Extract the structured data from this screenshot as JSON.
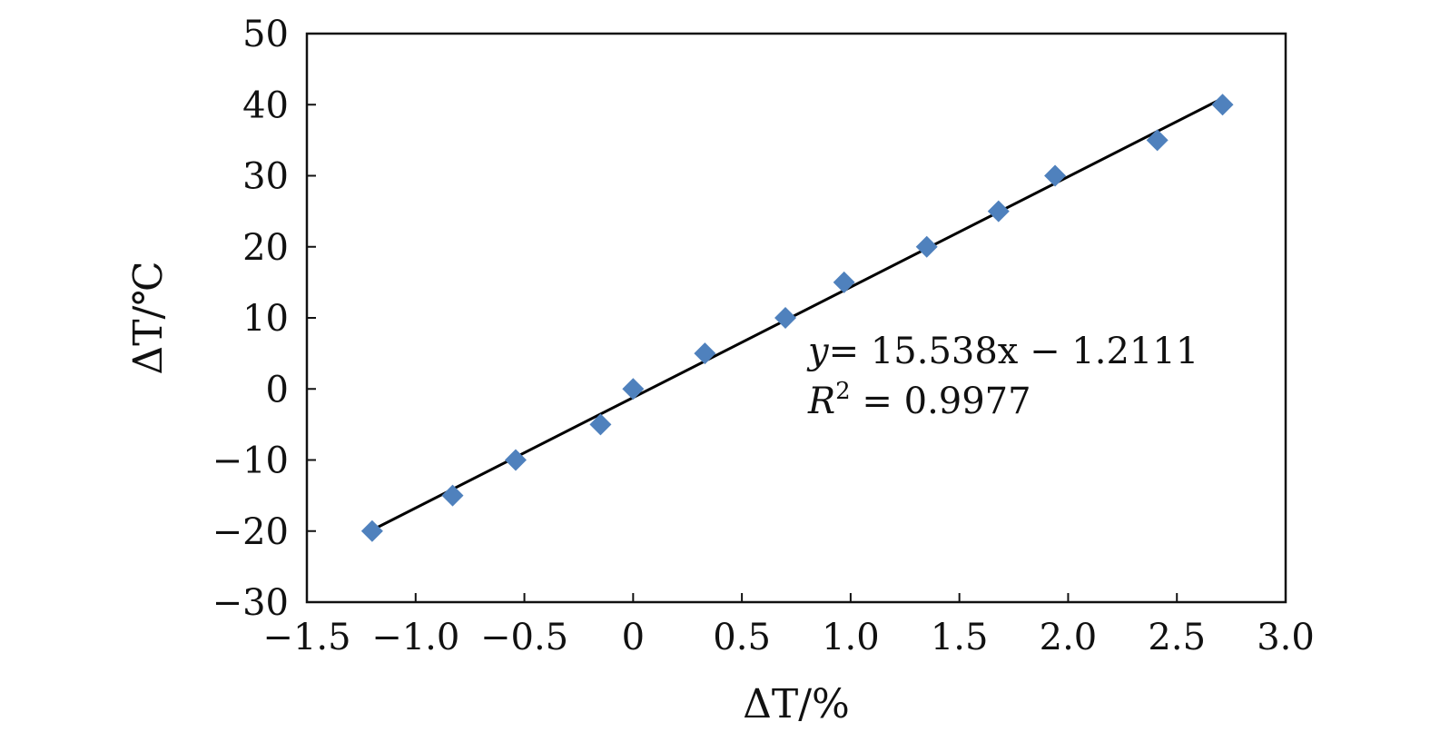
{
  "chart_data": {
    "type": "scatter",
    "xlabel": "ΔT/%",
    "ylabel": "ΔT/℃",
    "xlim": [
      -1.5,
      3.0
    ],
    "ylim": [
      -30,
      50
    ],
    "x_ticks": [
      -1.5,
      -1.0,
      -0.5,
      0,
      0.5,
      1.0,
      1.5,
      2.0,
      2.5,
      3.0
    ],
    "x_tick_labels": [
      "−1.5",
      "−1.0",
      "−0.5",
      "0",
      "0.5",
      "1.0",
      "1.5",
      "2.0",
      "2.5",
      "3.0"
    ],
    "y_ticks": [
      -30,
      -20,
      -10,
      0,
      10,
      20,
      30,
      40,
      50
    ],
    "y_tick_labels": [
      "−30",
      "−20",
      "−10",
      "0",
      "10",
      "20",
      "30",
      "40",
      "50"
    ],
    "grid": false,
    "marker_color": "#4f81bd",
    "line_color": "#000000",
    "series": [
      {
        "x": [
          -1.2,
          -0.83,
          -0.54,
          -0.15,
          0.0,
          0.33,
          0.7,
          0.97,
          1.35,
          1.68,
          1.94,
          2.41,
          2.71
        ],
        "y": [
          -20,
          -15,
          -10,
          -5,
          0,
          5,
          10,
          15,
          20,
          25,
          30,
          35,
          40
        ]
      }
    ],
    "trendline": {
      "slope": 15.538,
      "intercept": -1.2111,
      "x_range": [
        -1.2,
        2.71
      ]
    },
    "annotations": {
      "equation_lhs": "y",
      "equation_rhs": "= 15.538x − 1.2111",
      "r2_lhs": "R",
      "r2_sup": "2",
      "r2_rhs": " = 0.9977"
    }
  }
}
